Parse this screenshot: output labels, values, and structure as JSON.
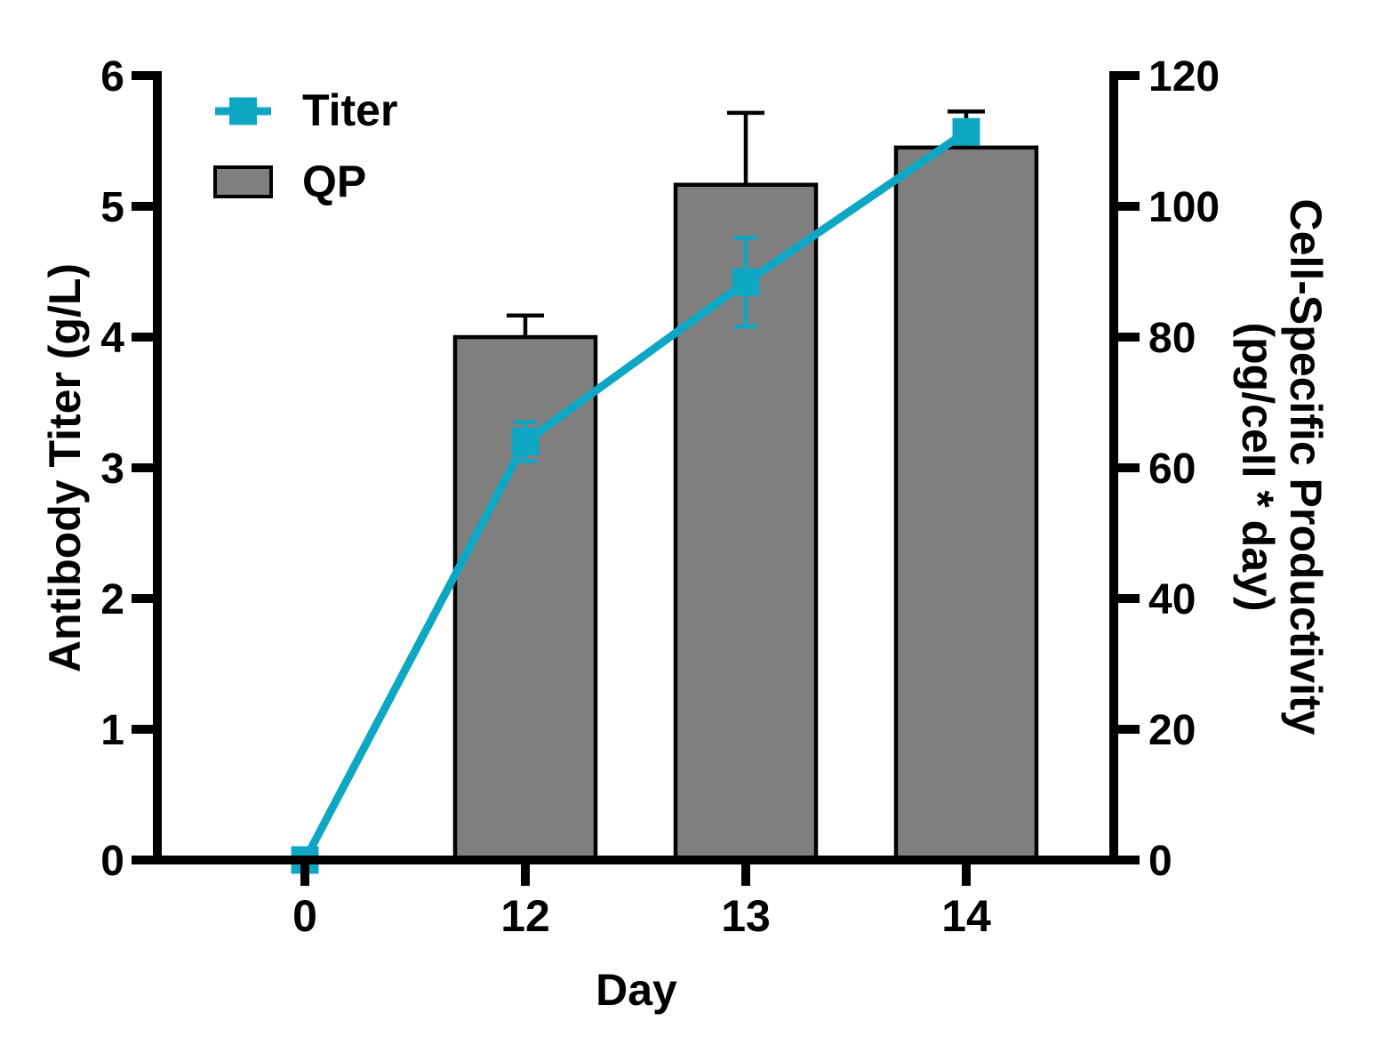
{
  "chart_data": {
    "type": "combo",
    "title": "",
    "x": {
      "label": "Day",
      "categories": [
        "0",
        "12",
        "13",
        "14"
      ]
    },
    "left_axis": {
      "label": "Antibody Titer (g/L)",
      "min": 0,
      "max": 6,
      "tick_step": 1,
      "ticks": [
        "0",
        "1",
        "2",
        "3",
        "4",
        "5",
        "6"
      ]
    },
    "right_axis": {
      "label_line1": "Cell-Specific Productivity",
      "label_line2": "(pg/cell * day)",
      "min": 0,
      "max": 120,
      "tick_step": 20,
      "ticks": [
        "0",
        "20",
        "40",
        "60",
        "80",
        "100",
        "120"
      ]
    },
    "series": [
      {
        "name": "Titer",
        "type": "line",
        "axis": "left",
        "marker": "square",
        "color": "#0DA7C4",
        "values": [
          0,
          3.2,
          4.42,
          5.57
        ],
        "errors": [
          null,
          0.15,
          0.34,
          null
        ]
      },
      {
        "name": "QP",
        "type": "bar",
        "axis": "right",
        "fill": "#7F7F7F",
        "border": "#000000",
        "values": [
          null,
          80,
          103.3,
          109
        ],
        "errors": [
          null,
          3.3,
          11,
          5.5
        ]
      }
    ],
    "legend": {
      "position": "top-left",
      "entries": [
        "Titer",
        "QP"
      ]
    },
    "grid": false,
    "background": "#FFFFFF"
  }
}
